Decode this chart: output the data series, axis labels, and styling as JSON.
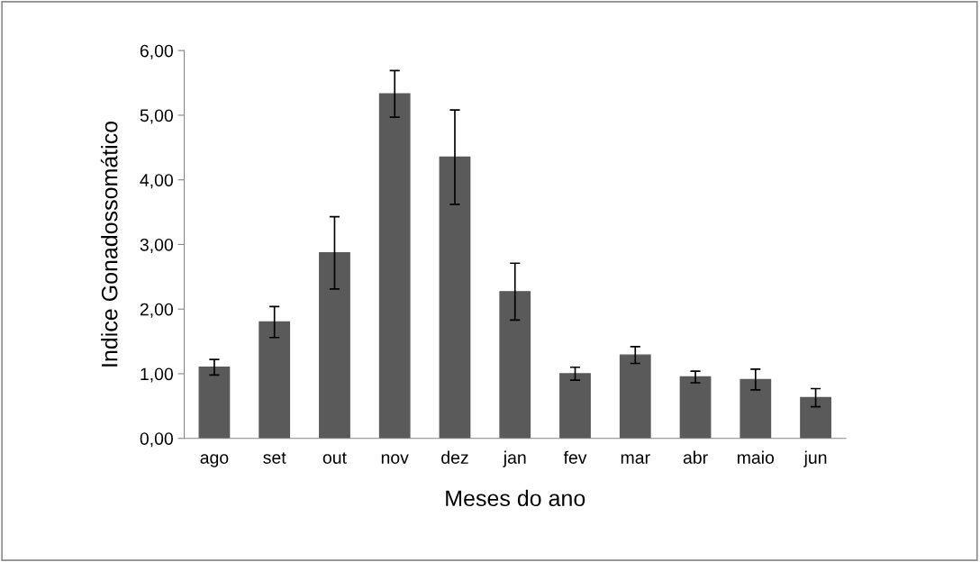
{
  "chart_data": {
    "type": "bar",
    "xlabel": "Meses do ano",
    "ylabel": "Indice Gonadossomático",
    "categories": [
      "ago",
      "set",
      "out",
      "nov",
      "dez",
      "jan",
      "fev",
      "mar",
      "abr",
      "maio",
      "jun"
    ],
    "values": [
      1.1,
      1.8,
      2.87,
      5.33,
      4.35,
      2.27,
      1.0,
      1.29,
      0.95,
      0.91,
      0.63
    ],
    "errors": [
      0.12,
      0.24,
      0.56,
      0.36,
      0.73,
      0.44,
      0.1,
      0.13,
      0.09,
      0.16,
      0.14
    ],
    "color": "#5a5a5a",
    "ylim": [
      0,
      6
    ],
    "yticks": [
      {
        "value": 0,
        "label": "0,00"
      },
      {
        "value": 1,
        "label": "1,00"
      },
      {
        "value": 2,
        "label": "2,00"
      },
      {
        "value": 3,
        "label": "3,00"
      },
      {
        "value": 4,
        "label": "4,00"
      },
      {
        "value": 5,
        "label": "5,00"
      },
      {
        "value": 6,
        "label": "6,00"
      }
    ],
    "grid": false,
    "legend": false
  }
}
